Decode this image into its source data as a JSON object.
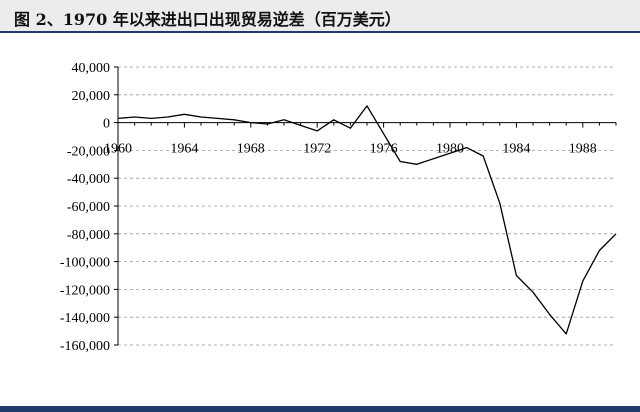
{
  "header": {
    "title": "图 2、1970 年以来进出口出现贸易逆差（百万美元）"
  },
  "colors": {
    "header_bg": "#ececec",
    "accent": "#1f3a6b",
    "line": "#000000",
    "grid": "#9a9a9a"
  },
  "chart_data": {
    "type": "line",
    "title": "图 2、1970 年以来进出口出现贸易逆差（百万美元）",
    "xlabel": "",
    "ylabel": "",
    "xlim": [
      1960,
      1990
    ],
    "ylim": [
      -160000,
      40000
    ],
    "grid": "horizontal dashed",
    "legend": "none",
    "x_ticks": [
      1960,
      1964,
      1968,
      1972,
      1976,
      1980,
      1984,
      1988
    ],
    "y_ticks": [
      40000,
      20000,
      0,
      -20000,
      -40000,
      -60000,
      -80000,
      -100000,
      -120000,
      -140000,
      -160000
    ],
    "y_tick_labels": [
      "40,000",
      "20,000",
      "0",
      "-20,000",
      "-40,000",
      "-60,000",
      "-80,000",
      "-100,000",
      "-120,000",
      "-140,000",
      "-160,000"
    ],
    "series": [
      {
        "x": [
          1960,
          1961,
          1962,
          1963,
          1964,
          1965,
          1966,
          1967,
          1968,
          1969,
          1970,
          1971,
          1972,
          1973,
          1974,
          1975,
          1976,
          1977,
          1978,
          1979,
          1980,
          1981,
          1982,
          1983,
          1984,
          1985,
          1986,
          1987,
          1988,
          1989,
          1990
        ],
        "values": [
          3000,
          4000,
          3000,
          4000,
          6000,
          4000,
          3000,
          2000,
          0,
          -1000,
          2000,
          -2000,
          -6000,
          2000,
          -4000,
          12000,
          -8000,
          -28000,
          -30000,
          -26000,
          -22000,
          -18000,
          -24000,
          -58000,
          -110000,
          -122000,
          -138000,
          -152000,
          -114000,
          -92000,
          -80000
        ]
      }
    ]
  }
}
